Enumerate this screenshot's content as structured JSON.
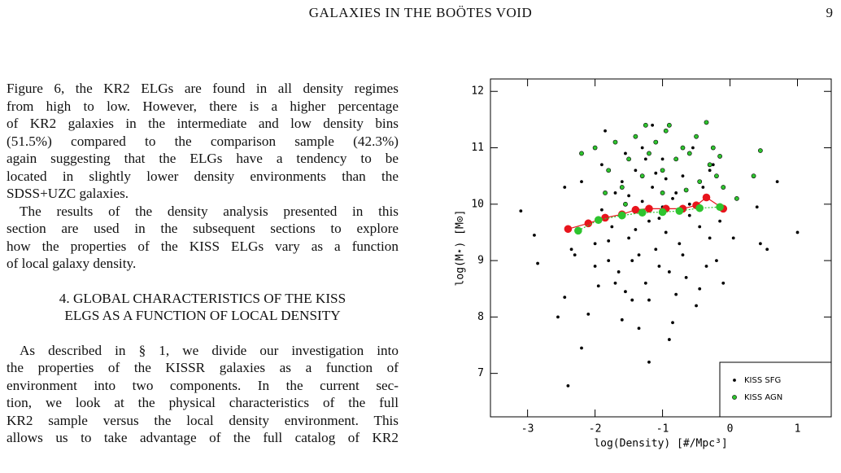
{
  "header": {
    "title": "GALAXIES IN THE BOÖTES VOID",
    "page": "9"
  },
  "text": {
    "paragraph_1": [
      "Figure 6, the KR2 ELGs are found in all density regimes",
      "from high to low. However, there is a higher percentage",
      "of KR2 galaxies in the intermediate and low density bins",
      "(51.5%) compared to the comparison sample (42.3%)",
      "again suggesting that the ELGs have a tendency to be",
      "located in slightly lower density environments than the",
      "SDSS+UZC galaxies."
    ],
    "paragraph_2": [
      "The results of the density analysis presented in this",
      "section are used in the subsequent sections to explore",
      "how the properties of the KISS ELGs vary as a function",
      "of local galaxy density."
    ],
    "heading": [
      "4.  GLOBAL CHARACTERISTICS OF THE KISS",
      "ELGS AS A FUNCTION OF LOCAL DENSITY"
    ],
    "paragraph_3": [
      "As described in § 1, we divide our investigation into",
      "the properties of the KISSR galaxies as a function of",
      "environment into two components. In the current sec-",
      "tion, we look at the physical characteristics of the full",
      "KR2 sample versus the local density environment. This",
      "allows us to take advantage of the full catalog of KR2"
    ]
  },
  "chart_data": {
    "type": "scatter",
    "xlabel": "log(Density) [#/Mpc³]",
    "ylabel": "log(M⋆) [M⊙]",
    "xlim": [
      -3.55,
      1.5
    ],
    "ylim": [
      6.23,
      12.22
    ],
    "xticks": [
      -3,
      -2,
      -1,
      0,
      1
    ],
    "yticks": [
      7,
      8,
      9,
      10,
      11,
      12
    ],
    "legend": "lower right",
    "series": [
      {
        "name": "KISS SFG",
        "color": "#000000",
        "x": [
          -3.1,
          -2.9,
          -2.85,
          -2.55,
          -2.45,
          -2.4,
          -2.45,
          -2.2,
          -2.1,
          -2.3,
          -2.2,
          -2.0,
          -1.95,
          -1.9,
          -1.85,
          -1.8,
          -1.75,
          -1.7,
          -1.65,
          -1.6,
          -1.55,
          -1.5,
          -1.45,
          -1.4,
          -1.35,
          -1.3,
          -1.25,
          -1.2,
          -1.2,
          -1.15,
          -1.1,
          -1.05,
          -1.0,
          -0.95,
          -0.9,
          -0.85,
          -0.8,
          -0.75,
          -0.7,
          -0.65,
          -0.6,
          -0.55,
          -0.5,
          -0.45,
          -0.4,
          -0.35,
          -0.3,
          -0.25,
          -0.2,
          -0.15,
          -0.1,
          0.05,
          0.4,
          0.45,
          0.55,
          0.7,
          1.0,
          -1.6,
          -1.3,
          -1.0,
          -0.8,
          -1.9,
          -2.1,
          -1.4,
          -1.1,
          -0.6,
          -1.7,
          -1.2,
          -0.9,
          -2.0,
          -1.5,
          -0.95,
          -1.25,
          -0.7,
          -1.8,
          -1.05,
          -1.45,
          -0.45,
          -2.35,
          -1.55,
          -0.3,
          -1.15,
          -0.85,
          -1.35
        ],
        "values": [
          9.88,
          9.45,
          8.95,
          8.0,
          8.35,
          6.78,
          10.3,
          7.45,
          8.05,
          9.1,
          10.4,
          9.3,
          8.55,
          10.7,
          11.3,
          9.0,
          9.6,
          10.2,
          8.8,
          7.95,
          10.9,
          9.4,
          8.3,
          10.6,
          9.1,
          11.0,
          8.6,
          9.7,
          7.2,
          10.3,
          9.2,
          8.9,
          10.8,
          9.5,
          7.6,
          10.1,
          8.4,
          9.3,
          10.5,
          8.7,
          9.8,
          11.0,
          8.2,
          9.6,
          10.3,
          8.9,
          9.4,
          10.7,
          9.0,
          9.7,
          8.6,
          9.4,
          9.95,
          9.3,
          9.2,
          10.4,
          9.5,
          10.4,
          10.05,
          9.95,
          10.2,
          9.9,
          9.7,
          9.55,
          10.55,
          10.0,
          8.6,
          8.3,
          8.8,
          8.9,
          10.15,
          10.45,
          10.8,
          9.1,
          9.35,
          9.75,
          9.0,
          8.5,
          9.2,
          8.45,
          10.6,
          11.4,
          7.9,
          7.8
        ]
      },
      {
        "name": "KISS AGN",
        "color": "#2ec42e",
        "x": [
          -2.2,
          -2.0,
          -1.8,
          -1.7,
          -1.6,
          -1.5,
          -1.4,
          -1.3,
          -1.2,
          -1.1,
          -1.0,
          -0.95,
          -0.9,
          -0.8,
          -0.7,
          -0.6,
          -0.5,
          -0.45,
          -0.35,
          -0.3,
          -0.25,
          -0.2,
          -0.1,
          0.1,
          0.35,
          0.45,
          -1.55,
          -1.0,
          -0.65,
          -1.85,
          -0.15,
          -1.25
        ],
        "values": [
          10.9,
          11.0,
          10.6,
          11.1,
          10.3,
          10.8,
          11.2,
          10.5,
          10.9,
          11.1,
          10.6,
          11.3,
          11.4,
          10.8,
          11.0,
          10.9,
          11.2,
          10.4,
          11.45,
          10.7,
          11.0,
          10.5,
          10.3,
          10.1,
          10.5,
          10.95,
          10.0,
          10.2,
          10.25,
          10.2,
          10.85,
          11.4
        ]
      },
      {
        "color": "#e8141c",
        "line": true,
        "x": [
          -2.4,
          -2.1,
          -1.85,
          -1.6,
          -1.4,
          -1.2,
          -0.95,
          -0.7,
          -0.5,
          -0.35,
          -0.1
        ],
        "values": [
          9.56,
          9.66,
          9.76,
          9.82,
          9.9,
          9.92,
          9.92,
          9.92,
          9.98,
          10.12,
          9.92
        ]
      },
      {
        "color": "#2ec42e",
        "line": true,
        "x": [
          -2.25,
          -1.95,
          -1.6,
          -1.3,
          -1.0,
          -0.75,
          -0.45,
          -0.15
        ],
        "values": [
          9.53,
          9.72,
          9.8,
          9.85,
          9.86,
          9.88,
          9.93,
          9.95
        ]
      }
    ]
  }
}
